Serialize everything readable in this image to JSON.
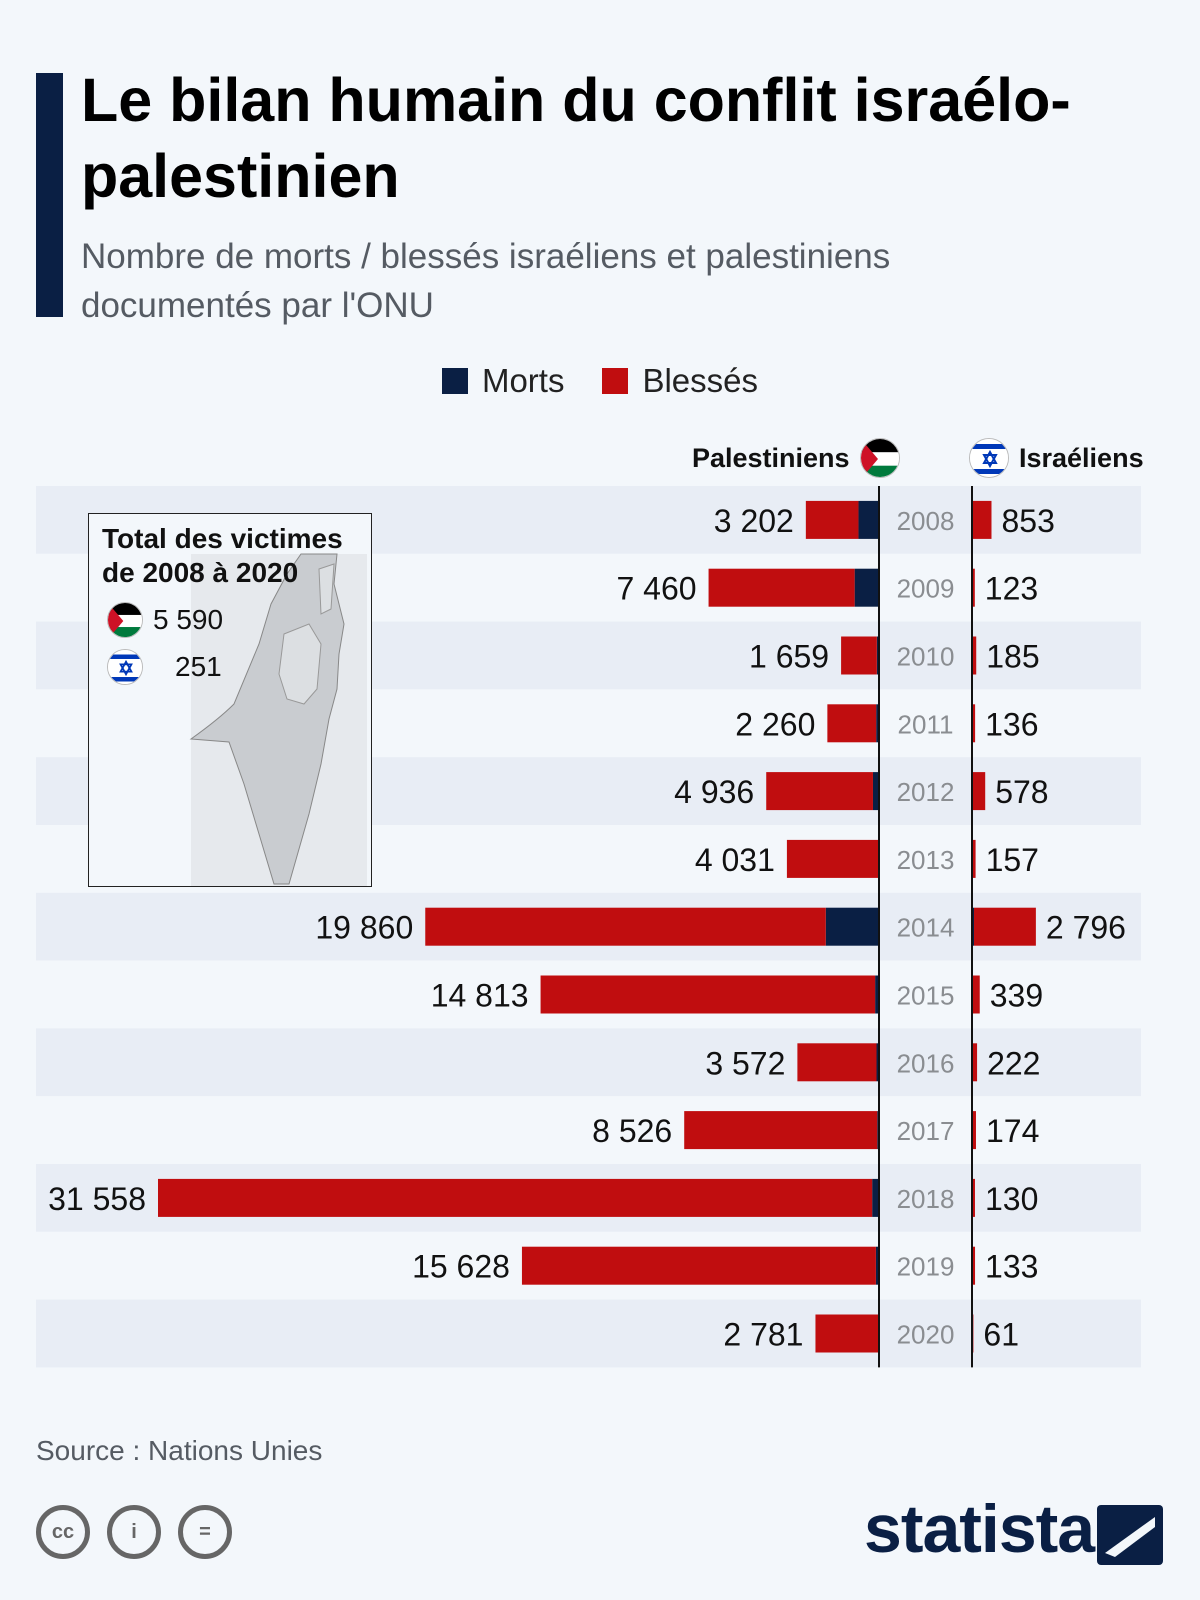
{
  "header": {
    "title": "Le bilan humain du conflit israélo-palestinien",
    "subtitle": "Nombre de morts / blessés israéliens et palestiniens documentés par l'ONU"
  },
  "legend": [
    {
      "label": "Morts",
      "color": "#0a1f44"
    },
    {
      "label": "Blessés",
      "color": "#c00d0f"
    }
  ],
  "columns": {
    "left": "Palestiniens",
    "right": "Israéliens",
    "left_icon": "palestine-flag-icon",
    "right_icon": "israel-flag-icon"
  },
  "inset": {
    "title_line1": "Total des victimes",
    "title_line2": "de 2008 à 2020",
    "palestinian_total": "5 590",
    "israeli_total": "251"
  },
  "chart_data": {
    "type": "bar",
    "orientation": "horizontal-diverging-stacked",
    "categories": [
      "2008",
      "2009",
      "2010",
      "2011",
      "2012",
      "2013",
      "2014",
      "2015",
      "2016",
      "2017",
      "2018",
      "2019",
      "2020"
    ],
    "palestinian_total_labels": [
      "3 202",
      "7 460",
      "1 659",
      "2 260",
      "4 936",
      "4 031",
      "19 860",
      "14 813",
      "3 572",
      "8 526",
      "31 558",
      "15 628",
      "2 781"
    ],
    "israeli_total_labels": [
      "853",
      "123",
      "185",
      "136",
      "578",
      "157",
      "2 796",
      "339",
      "222",
      "174",
      "130",
      "133",
      "61"
    ],
    "series": [
      {
        "side": "Palestiniens",
        "name": "Morts",
        "values": [
          899,
          1066,
          95,
          124,
          264,
          39,
          2329,
          170,
          109,
          77,
          299,
          135,
          30
        ]
      },
      {
        "side": "Palestiniens",
        "name": "Blessés",
        "values": [
          2303,
          6394,
          1564,
          2136,
          4672,
          3992,
          17531,
          14643,
          3463,
          8449,
          31259,
          15493,
          2751
        ]
      },
      {
        "side": "Israéliens",
        "name": "Morts",
        "values": [
          35,
          9,
          9,
          11,
          7,
          6,
          88,
          25,
          13,
          15,
          14,
          10,
          3
        ]
      },
      {
        "side": "Israéliens",
        "name": "Blessés",
        "values": [
          818,
          114,
          176,
          125,
          571,
          151,
          2708,
          314,
          209,
          159,
          116,
          123,
          58
        ]
      }
    ],
    "colors": {
      "Morts": "#0a1f44",
      "Blessés": "#c00d0f"
    },
    "grid": false
  },
  "footer": {
    "source": "Source : Nations Unies",
    "brand": "statista",
    "cc": [
      "cc",
      "by",
      "nd"
    ]
  }
}
